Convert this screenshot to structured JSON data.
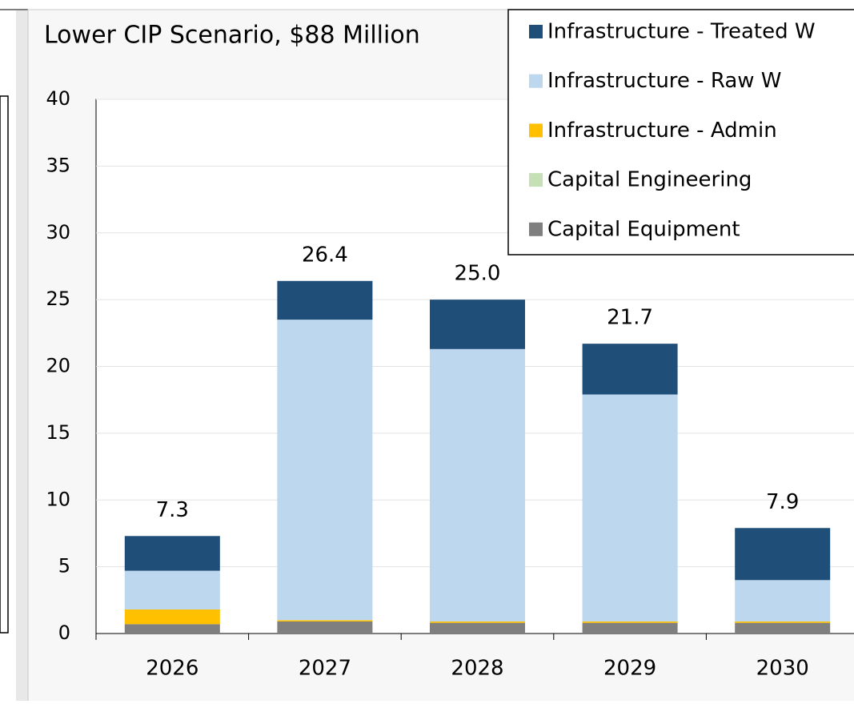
{
  "chart_data": {
    "type": "stacked_bar",
    "title": "Lower CIP Scenario, $88 Million",
    "categories": [
      "2026",
      "2027",
      "2028",
      "2029",
      "2030"
    ],
    "series": [
      {
        "name": "Capital Equipment",
        "color": "#7f7f7f",
        "values": [
          0.7,
          0.9,
          0.8,
          0.8,
          0.8
        ]
      },
      {
        "name": "Capital Engineering",
        "color": "#c5e0b4",
        "values": [
          0,
          0,
          0,
          0,
          0
        ]
      },
      {
        "name": "Infrastructure - Admin",
        "color": "#ffc000",
        "values": [
          1.1,
          0.1,
          0.1,
          0.1,
          0.1
        ]
      },
      {
        "name": "Infrastructure - Raw W",
        "color": "#bdd7ee",
        "values": [
          2.9,
          22.5,
          20.4,
          17.0,
          3.1
        ]
      },
      {
        "name": "Infrastructure - Treated W",
        "color": "#1f4e79",
        "values": [
          2.6,
          2.9,
          3.7,
          3.8,
          3.9
        ]
      }
    ],
    "total_labels": [
      "7.3",
      "26.4",
      "25.0",
      "21.7",
      "7.9"
    ],
    "ylim": [
      0,
      40
    ],
    "yticks": [
      0,
      5,
      10,
      15,
      20,
      25,
      30,
      35,
      40
    ],
    "grid": true,
    "legend": "top-right"
  }
}
